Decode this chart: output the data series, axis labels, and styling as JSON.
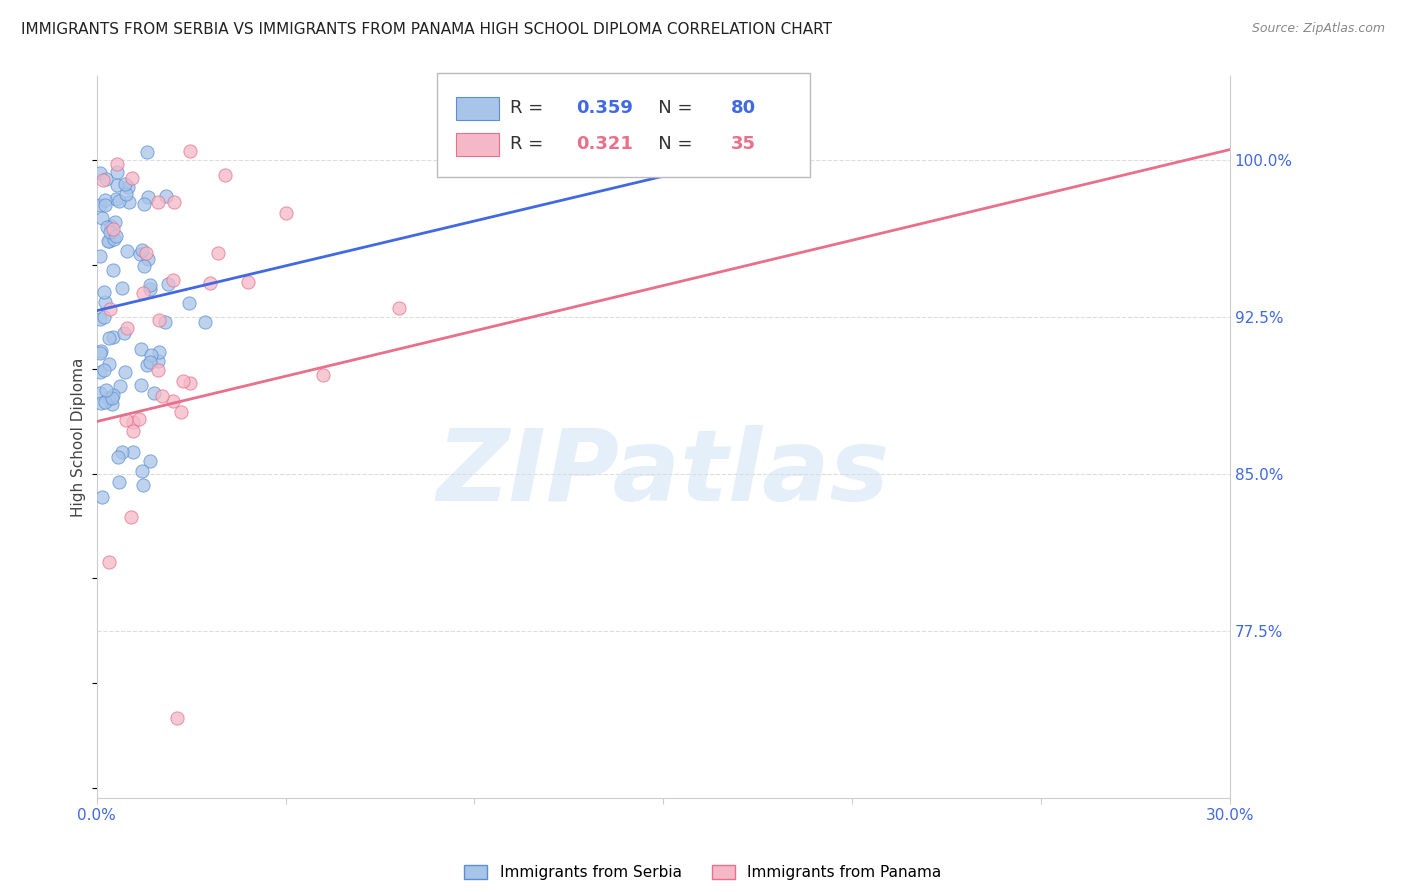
{
  "title": "IMMIGRANTS FROM SERBIA VS IMMIGRANTS FROM PANAMA HIGH SCHOOL DIPLOMA CORRELATION CHART",
  "source": "Source: ZipAtlas.com",
  "ylabel": "High School Diploma",
  "xlim": [
    0.0,
    0.3
  ],
  "ylim": [
    0.695,
    1.04
  ],
  "xticks": [
    0.0,
    0.05,
    0.1,
    0.15,
    0.2,
    0.25,
    0.3
  ],
  "xticklabels": [
    "0.0%",
    "",
    "",
    "",
    "",
    "",
    "30.0%"
  ],
  "yticks": [
    0.775,
    0.85,
    0.925,
    1.0
  ],
  "yticklabels": [
    "77.5%",
    "85.0%",
    "92.5%",
    "100.0%"
  ],
  "serbia_color": "#a8c4e8",
  "panama_color": "#f5b8c8",
  "serbia_edge_color": "#5b8fd4",
  "panama_edge_color": "#e8708a",
  "serbia_line_color": "#4169e1",
  "panama_line_color": "#e8708a",
  "R_serbia": 0.359,
  "N_serbia": 80,
  "R_panama": 0.321,
  "N_panama": 35,
  "serbia_trend": [
    0.0,
    0.175,
    0.928,
    1.003
  ],
  "panama_trend": [
    0.0,
    0.3,
    0.875,
    1.005
  ],
  "watermark_text": "ZIPatlas",
  "background_color": "#ffffff",
  "grid_color": "#dddddd",
  "axis_color": "#cccccc",
  "tick_color": "#4169e1",
  "title_fontsize": 11,
  "label_fontsize": 11,
  "tick_fontsize": 11,
  "legend_fontsize": 13
}
